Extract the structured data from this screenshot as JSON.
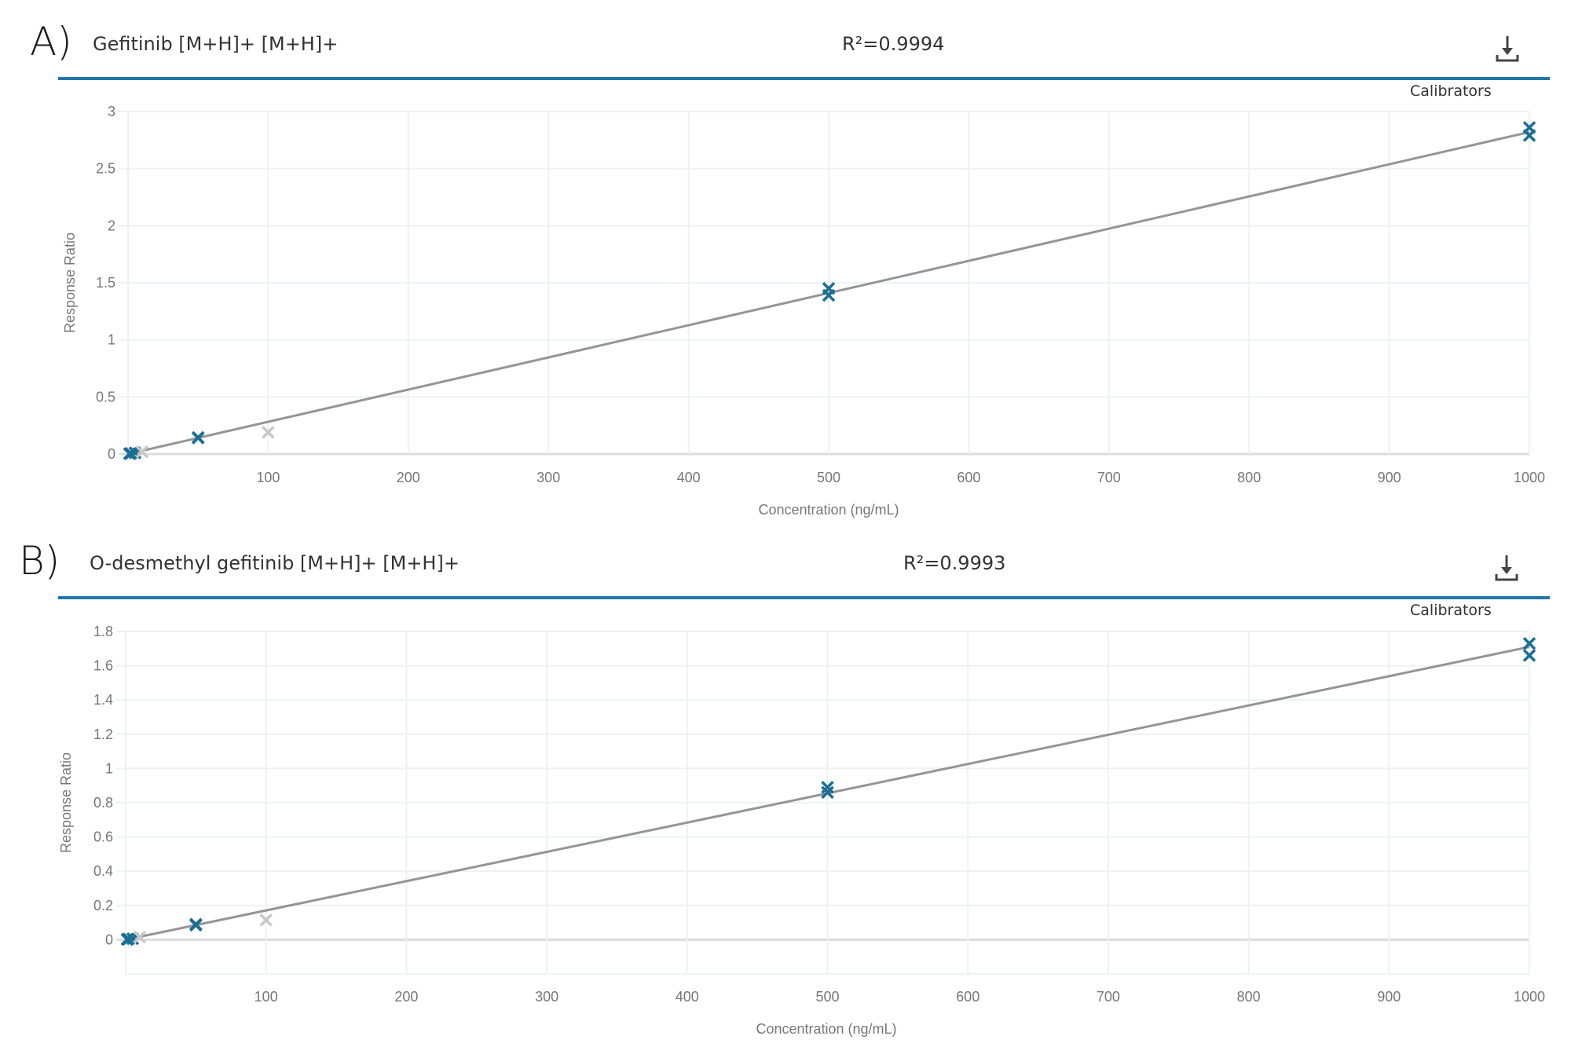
{
  "colors": {
    "accent_rule": "#1f77a8",
    "included_marker": "#1a6e94",
    "excluded_marker": "#c8c8c8",
    "fit_line": "#8a8a8a",
    "grid": "#eef1f3",
    "tick_text": "#777777"
  },
  "panels": [
    {
      "letter": "A)",
      "title": "Gefitinib [M+H]+ [M+H]+",
      "r2": "R²=0.9994",
      "legend_label": "Calibrators",
      "download_icon": "download-icon",
      "xlabel": "Concentration (ng/mL)",
      "ylabel": "Response Ratio",
      "y_ticks": [
        "0",
        "0.5",
        "1",
        "1.5",
        "2",
        "2.5",
        "3"
      ],
      "x_ticks": [
        "100",
        "200",
        "300",
        "400",
        "500",
        "600",
        "700",
        "800",
        "900",
        "1000"
      ]
    },
    {
      "letter": "B)",
      "title": "O-desmethyl gefitinib [M+H]+ [M+H]+",
      "r2": "R²=0.9993",
      "legend_label": "Calibrators",
      "download_icon": "download-icon",
      "xlabel": "Concentration (ng/mL)",
      "ylabel": "Response Ratio",
      "y_ticks": [
        "0",
        "0.2",
        "0.4",
        "0.6",
        "0.8",
        "1",
        "1.2",
        "1.4",
        "1.6",
        "1.8"
      ],
      "x_ticks": [
        "100",
        "200",
        "300",
        "400",
        "500",
        "600",
        "700",
        "800",
        "900",
        "1000"
      ]
    }
  ],
  "chart_data": [
    {
      "type": "scatter",
      "title": "Gefitinib [M+H]+ [M+H]+",
      "subtitle": "R²=0.9994",
      "xlabel": "Concentration (ng/mL)",
      "ylabel": "Response Ratio",
      "xlim": [
        0,
        1000
      ],
      "ylim": [
        0,
        3
      ],
      "grid": true,
      "legend": [
        "Calibrators"
      ],
      "legend_position": "top-right",
      "series": [
        {
          "name": "Calibrators (included)",
          "marker": "x",
          "color": "#1a6e94",
          "points": [
            [
              1,
              0.003
            ],
            [
              2,
              0.005
            ],
            [
              5,
              0.01
            ],
            [
              50,
              0.14
            ],
            [
              50,
              0.145
            ],
            [
              500,
              1.45
            ],
            [
              500,
              1.39
            ],
            [
              1000,
              2.86
            ],
            [
              1000,
              2.79
            ]
          ]
        },
        {
          "name": "Calibrators (excluded)",
          "marker": "x",
          "color": "#c8c8c8",
          "points": [
            [
              10,
              0.02
            ],
            [
              100,
              0.19
            ]
          ]
        },
        {
          "name": "Linear fit",
          "type": "line",
          "color": "#8a8a8a",
          "points": [
            [
              0,
              0.0
            ],
            [
              1000,
              2.82
            ]
          ]
        }
      ]
    },
    {
      "type": "scatter",
      "title": "O-desmethyl gefitinib [M+H]+ [M+H]+",
      "subtitle": "R²=0.9993",
      "xlabel": "Concentration (ng/mL)",
      "ylabel": "Response Ratio",
      "xlim": [
        0,
        1000
      ],
      "ylim": [
        -0.2,
        1.8
      ],
      "grid": true,
      "legend": [
        "Calibrators"
      ],
      "legend_position": "top-right",
      "series": [
        {
          "name": "Calibrators (included)",
          "marker": "x",
          "color": "#1a6e94",
          "points": [
            [
              1,
              0.002
            ],
            [
              2,
              0.004
            ],
            [
              5,
              0.006
            ],
            [
              50,
              0.085
            ],
            [
              50,
              0.09
            ],
            [
              500,
              0.89
            ],
            [
              500,
              0.86
            ],
            [
              1000,
              1.73
            ],
            [
              1000,
              1.66
            ]
          ]
        },
        {
          "name": "Calibrators (excluded)",
          "marker": "x",
          "color": "#c8c8c8",
          "points": [
            [
              10,
              0.015
            ],
            [
              100,
              0.115
            ]
          ]
        },
        {
          "name": "Linear fit",
          "type": "line",
          "color": "#8a8a8a",
          "points": [
            [
              0,
              0.0
            ],
            [
              1000,
              1.71
            ]
          ]
        }
      ]
    }
  ]
}
